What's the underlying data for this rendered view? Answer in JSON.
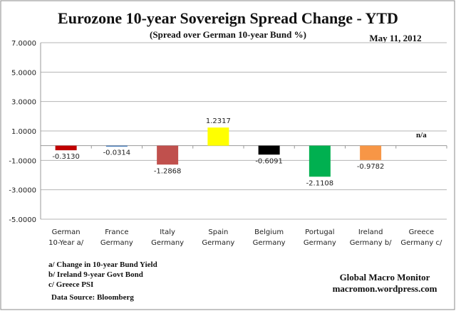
{
  "chart_data": {
    "type": "bar",
    "title": "Eurozone 10-year Sovereign Spread Change - YTD",
    "subtitle": "(Spread over German 10-year Bund %)",
    "date": "May 11,  2012",
    "xlabel": "",
    "ylabel": "",
    "ylim": [
      -5,
      7
    ],
    "yticks": [
      7,
      5,
      3,
      1,
      -1,
      -3,
      -5
    ],
    "ytick_labels": [
      "7.0000",
      "5.0000",
      "3.0000",
      "1.0000",
      "-1.0000",
      "-3.0000",
      "-5.0000"
    ],
    "grid": true,
    "categories": [
      [
        "German",
        "10-Year a/"
      ],
      [
        "France",
        "Germany"
      ],
      [
        "Italy",
        "Germany"
      ],
      [
        "Spain",
        "Germany"
      ],
      [
        "Belgium",
        "Germany"
      ],
      [
        "Portugal",
        "Germany"
      ],
      [
        "Ireland",
        "Germany b/"
      ],
      [
        "Greece",
        "Germany c/"
      ]
    ],
    "values": [
      -0.313,
      -0.0314,
      -1.2868,
      1.2317,
      -0.6091,
      -2.1108,
      -0.9782,
      null
    ],
    "value_labels": [
      "-0.3130",
      "-0.0314",
      "-1.2868",
      "1.2317",
      "-0.6091",
      "-2.1108",
      "-0.9782",
      "n/a"
    ],
    "colors": [
      "#C00000",
      "#4F81BD",
      "#C0504D",
      "#FFFF00",
      "#000000",
      "#00B050",
      "#F79646",
      "#FFFFFF"
    ],
    "footnotes": [
      "a/  Change in 10-year Bund Yield",
      "b/  Ireland 9-year Govt Bond",
      "c/  Greece PSI"
    ],
    "source": "Data Source:  Bloomberg",
    "credit": [
      "Global Macro Monitor",
      "macromon.wordpress.com"
    ]
  }
}
